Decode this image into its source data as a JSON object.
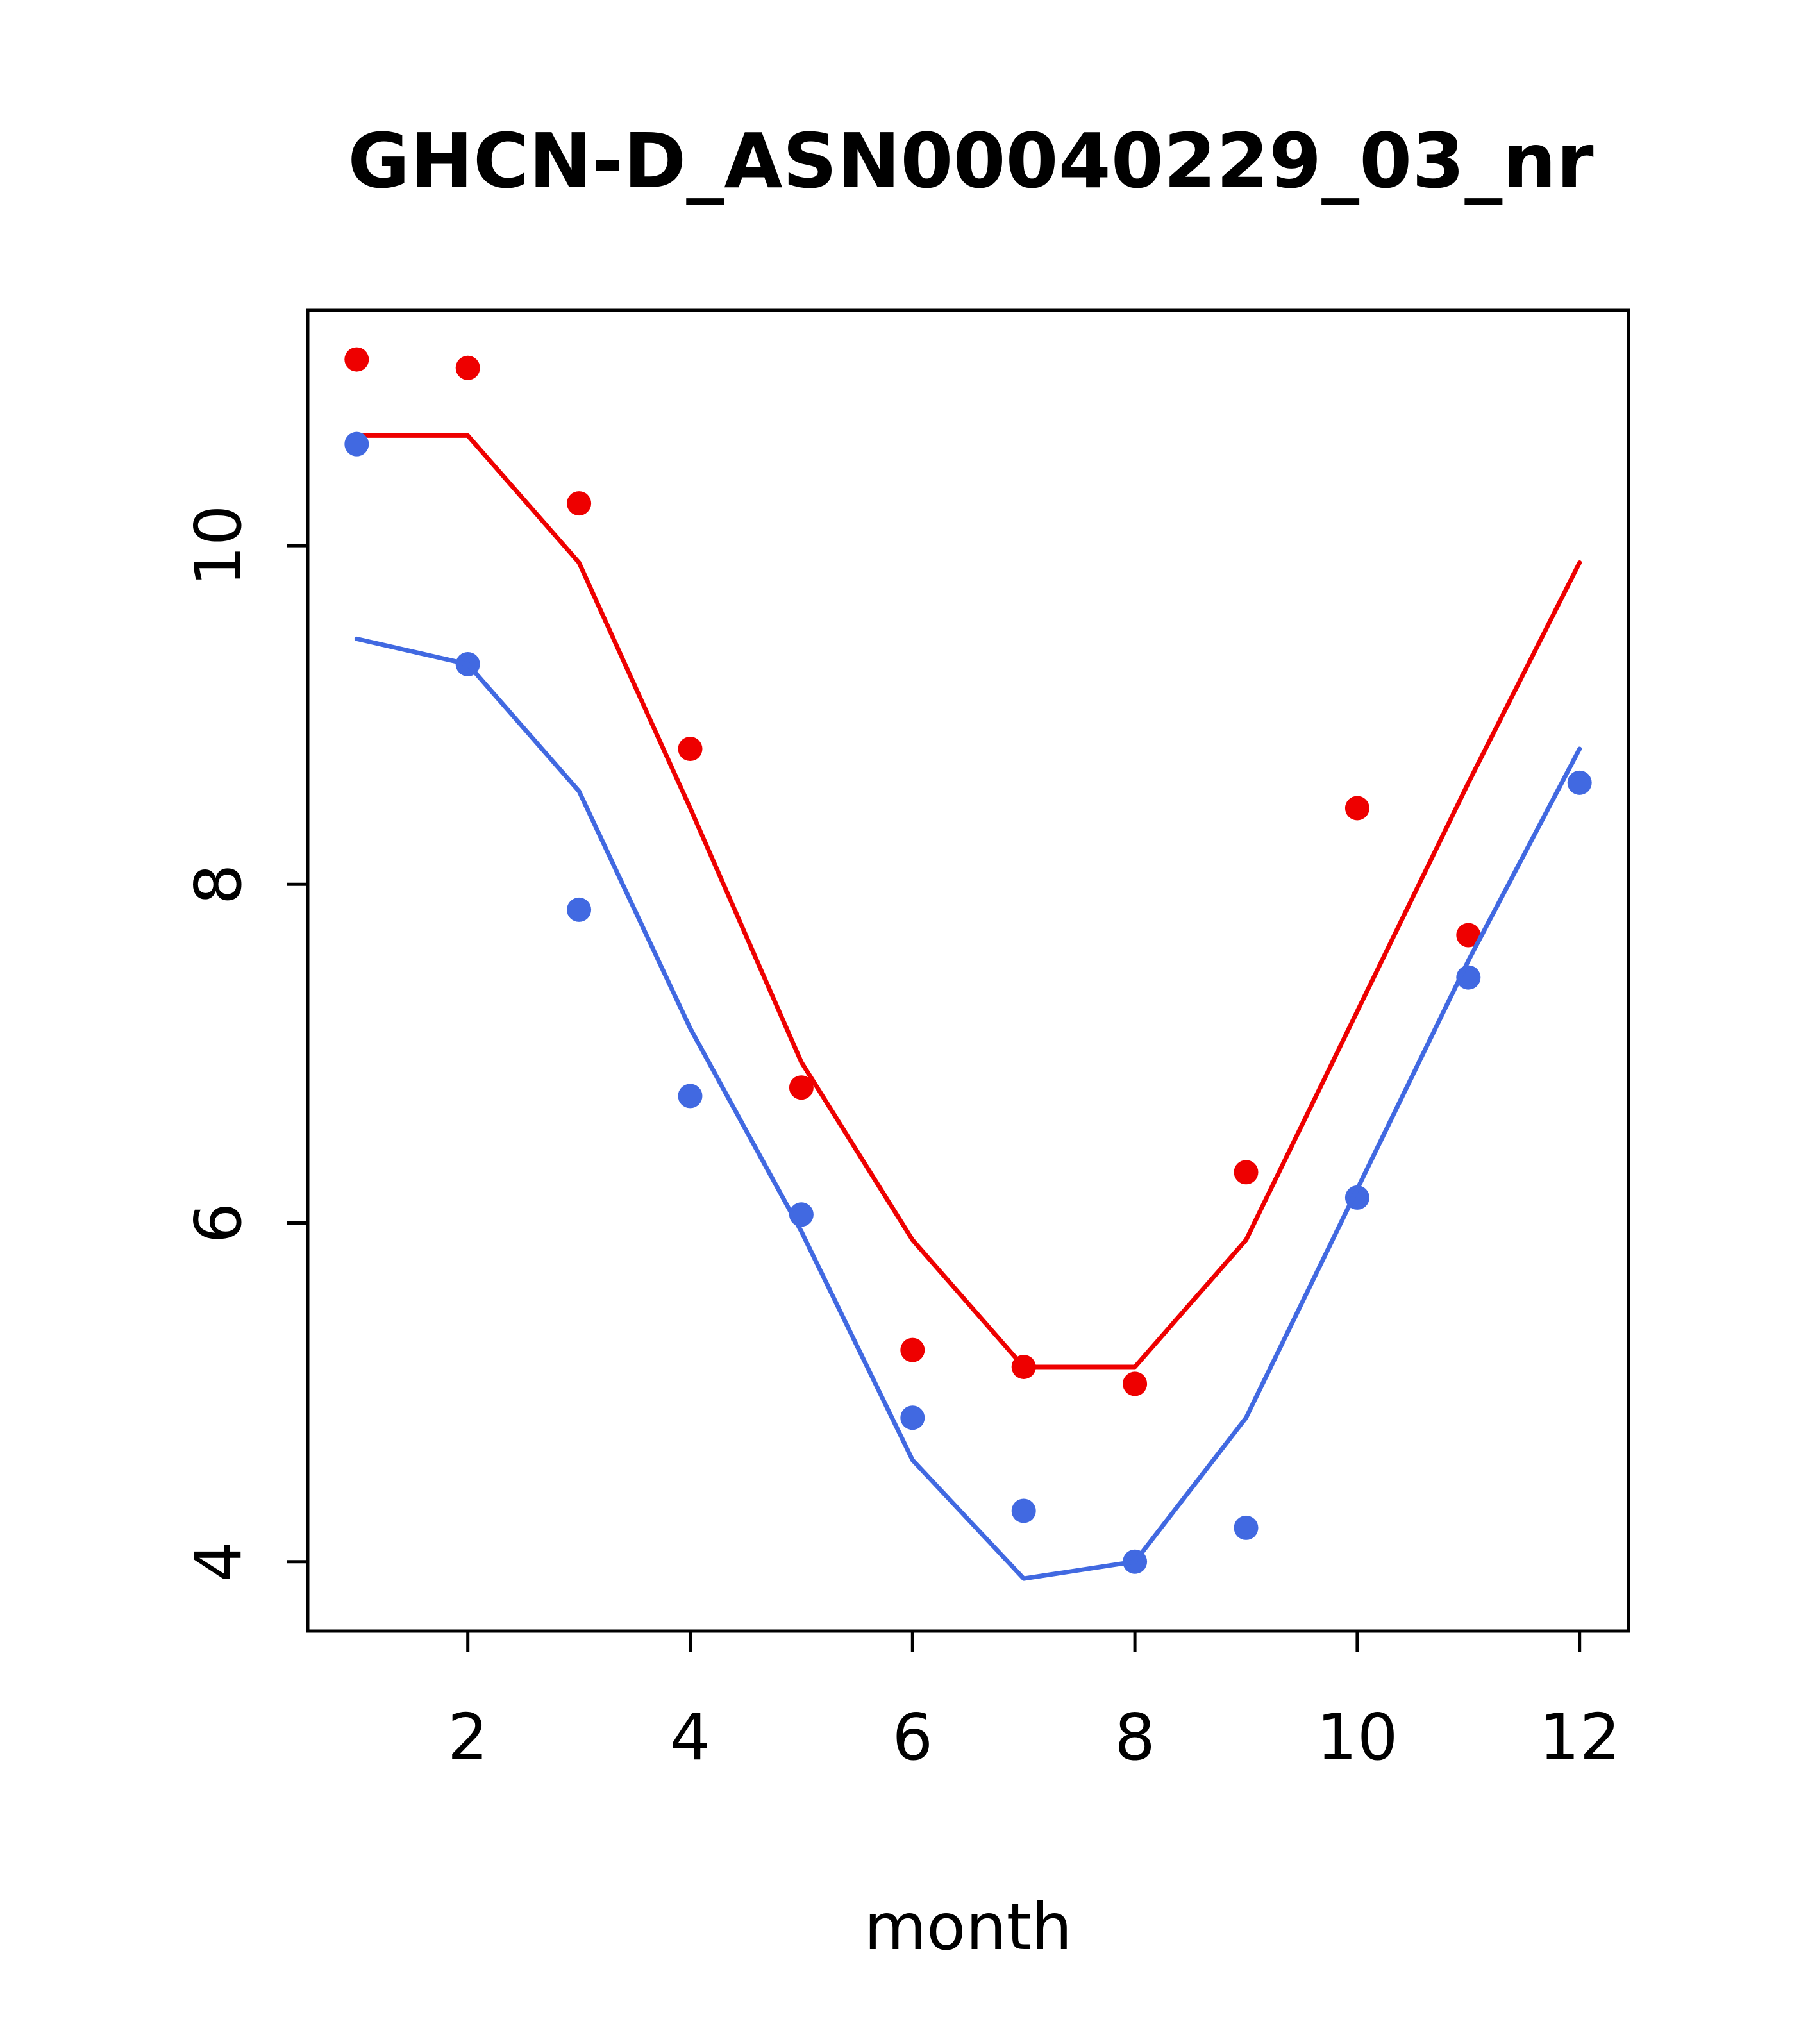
{
  "chart_data": {
    "type": "line",
    "title": "GHCN-D_ASN00040229_03_nr",
    "xlabel": "month",
    "ylabel": "",
    "x": [
      1,
      2,
      3,
      4,
      5,
      6,
      7,
      8,
      9,
      10,
      11,
      12
    ],
    "xticks": [
      2,
      4,
      6,
      8,
      10,
      12
    ],
    "yticks": [
      4,
      6,
      8,
      10
    ],
    "xlim": [
      0.56,
      12.44
    ],
    "ylim": [
      3.59,
      11.39
    ],
    "grid": false,
    "legend": "none",
    "plot": {
      "background": "#ffffff",
      "box_color": "#000000"
    },
    "series": [
      {
        "name": "red-points",
        "style": "points",
        "color": "#EE0000",
        "values": [
          11.1,
          11.05,
          10.25,
          8.8,
          6.8,
          5.25,
          5.15,
          5.05,
          6.3,
          8.45,
          7.7,
          null
        ]
      },
      {
        "name": "red-line",
        "style": "line",
        "color": "#EE0000",
        "values": [
          10.65,
          10.65,
          9.9,
          8.45,
          6.95,
          5.9,
          5.15,
          5.15,
          5.9,
          7.25,
          8.6,
          9.9
        ]
      },
      {
        "name": "blue-points",
        "style": "points",
        "color": "#4169E1",
        "values": [
          10.6,
          9.3,
          7.85,
          6.75,
          6.05,
          4.85,
          4.3,
          4.0,
          4.2,
          6.15,
          7.45,
          8.6
        ]
      },
      {
        "name": "blue-line",
        "style": "line",
        "color": "#4169E1",
        "values": [
          9.45,
          9.3,
          8.55,
          7.15,
          5.95,
          4.6,
          3.9,
          4.0,
          4.85,
          6.2,
          7.55,
          8.8
        ]
      }
    ]
  }
}
